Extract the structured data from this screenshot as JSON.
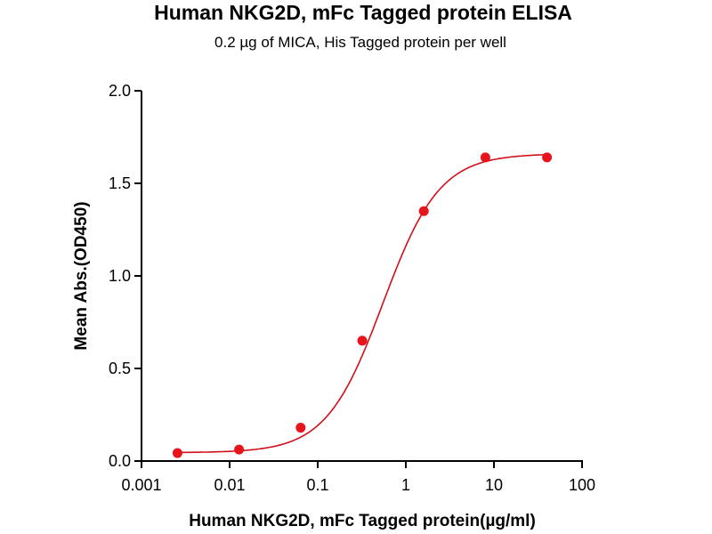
{
  "chart_data": {
    "type": "scatter",
    "title": "Human NKG2D, mFc Tagged protein ELISA",
    "subtitle": "0.2 µg of MICA, His Tagged protein per well",
    "xlabel": "Human NKG2D, mFc Tagged protein(µg/ml)",
    "ylabel": "Mean Abs.(OD450)",
    "xscale": "log",
    "xlim": [
      0.001,
      100
    ],
    "ylim": [
      0,
      2.0
    ],
    "xticks": [
      "0.001",
      "0.01",
      "0.1",
      "1",
      "10",
      "100"
    ],
    "yticks": [
      "0.0",
      "0.5",
      "1.0",
      "1.5",
      "2.0"
    ],
    "grid": false,
    "color": "#e8141b",
    "curve_color": "#d0101a",
    "fit": "sigmoidal curve",
    "x": [
      0.00256,
      0.0128,
      0.064,
      0.32,
      1.6,
      8,
      40
    ],
    "y": [
      0.043,
      0.062,
      0.18,
      0.65,
      1.35,
      1.64,
      1.64
    ]
  }
}
